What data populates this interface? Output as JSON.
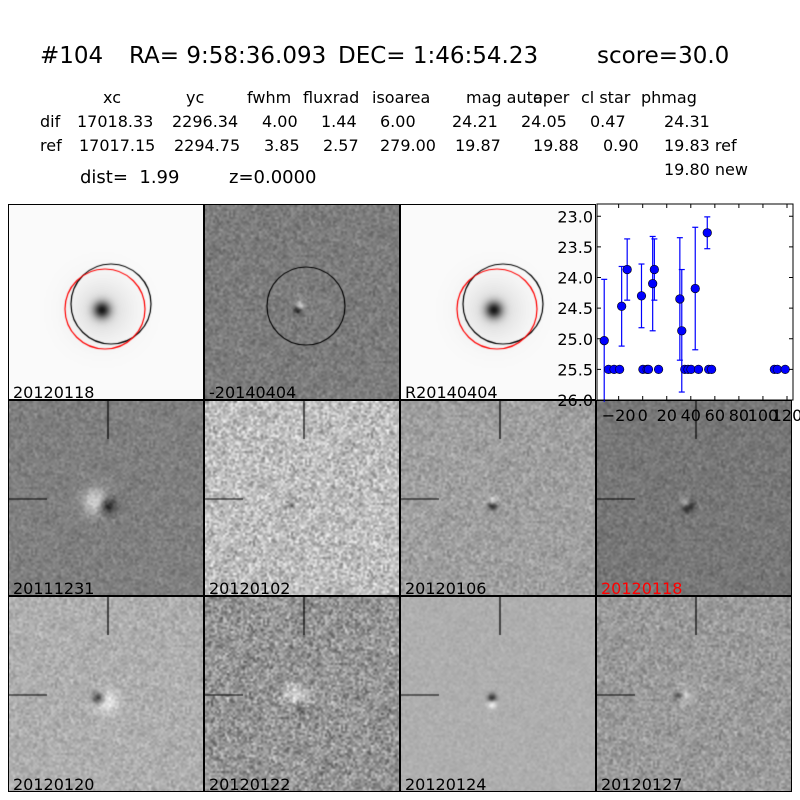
{
  "header": {
    "id": "#104",
    "ra": "RA= 9:58:36.093",
    "dec": "DEC= 1:46:54.23",
    "score": "score=30.0",
    "columns": [
      "xc",
      "yc",
      "fwhm",
      "fluxrad",
      "isoarea",
      "mag auto",
      "aper",
      "cl star",
      "phmag"
    ],
    "rows": [
      {
        "label": "dif",
        "values": [
          "17018.33",
          "2296.34",
          "4.00",
          "1.44",
          "6.00",
          "24.21",
          "24.05",
          "0.47",
          "24.31"
        ]
      },
      {
        "label": "ref",
        "values": [
          "17017.15",
          "2294.75",
          "3.85",
          "2.57",
          "279.00",
          "19.87",
          "19.88",
          "0.90",
          "19.83 ref"
        ]
      }
    ],
    "phmag_new": "19.80 new",
    "dist": "dist=  1.99",
    "z": "z=0.0000"
  },
  "stamps": [
    {
      "label": "20120118",
      "color": "#000000"
    },
    {
      "label": "-20140404",
      "color": "#000000"
    },
    {
      "label": "R20140404",
      "color": "#000000"
    },
    {
      "label": "20111231",
      "color": "#000000"
    },
    {
      "label": "20120102",
      "color": "#000000"
    },
    {
      "label": "20120106",
      "color": "#000000"
    },
    {
      "label": "20120118",
      "color": "#ff0000"
    },
    {
      "label": "20120120",
      "color": "#000000"
    },
    {
      "label": "20120122",
      "color": "#000000"
    },
    {
      "label": "20120124",
      "color": "#000000"
    },
    {
      "label": "20120127",
      "color": "#000000"
    }
  ],
  "chart_data": {
    "type": "scatter",
    "xlim": [
      -38,
      125
    ],
    "ylim": [
      26.0,
      22.8
    ],
    "y_inverted": true,
    "xticks": [
      -20,
      0,
      20,
      40,
      60,
      80,
      100,
      120
    ],
    "yticks": [
      23.0,
      23.5,
      24.0,
      24.5,
      25.0,
      25.5,
      26.0
    ],
    "color": "#0000ff",
    "grid": false,
    "points": [
      {
        "x": -32,
        "y": 25.03,
        "err": 1.0
      },
      {
        "x": -28.4,
        "y": 25.5,
        "err": 0.03
      },
      {
        "x": -23.8,
        "y": 25.5,
        "err": 0.03
      },
      {
        "x": -19.2,
        "y": 25.5,
        "err": 0.03
      },
      {
        "x": -17.5,
        "y": 24.47,
        "err": 0.65
      },
      {
        "x": -12.9,
        "y": 23.87,
        "err": 0.5
      },
      {
        "x": -1,
        "y": 24.3,
        "err": 0.52
      },
      {
        "x": 0.2,
        "y": 25.5,
        "err": 0.03
      },
      {
        "x": 3.7,
        "y": 25.5,
        "err": 0.03
      },
      {
        "x": 4.8,
        "y": 25.5,
        "err": 0.03
      },
      {
        "x": 8.3,
        "y": 24.1,
        "err": 0.77
      },
      {
        "x": 9.7,
        "y": 23.87,
        "err": 0.5
      },
      {
        "x": 13.2,
        "y": 25.5,
        "err": 0.03
      },
      {
        "x": 30.9,
        "y": 24.35,
        "err": 1.0
      },
      {
        "x": 32.5,
        "y": 24.87,
        "err": 1.0
      },
      {
        "x": 35,
        "y": 25.5,
        "err": 0.03
      },
      {
        "x": 37.7,
        "y": 25.5,
        "err": 0.03
      },
      {
        "x": 40.2,
        "y": 25.5,
        "err": 0.03
      },
      {
        "x": 43.7,
        "y": 24.18,
        "err": 1.0
      },
      {
        "x": 46.4,
        "y": 25.5,
        "err": 0.03
      },
      {
        "x": 53.7,
        "y": 23.27,
        "err": 0.26
      },
      {
        "x": 54.9,
        "y": 25.5,
        "err": 0.03
      },
      {
        "x": 57.3,
        "y": 25.5,
        "err": 0.03
      },
      {
        "x": 109.5,
        "y": 25.5,
        "err": 0.03
      },
      {
        "x": 112,
        "y": 25.5,
        "err": 0.03
      },
      {
        "x": 118.5,
        "y": 25.5,
        "err": 0.03
      }
    ]
  }
}
